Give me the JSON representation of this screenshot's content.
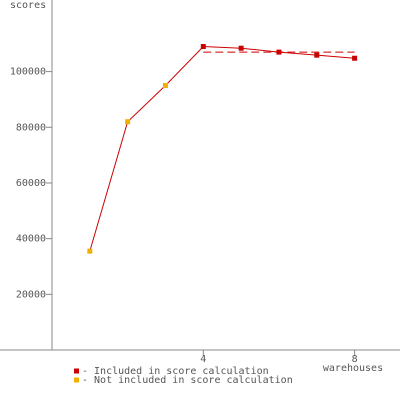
{
  "chart_data": {
    "type": "line",
    "ylabel": "scores",
    "xlabel": "warehouses",
    "x": [
      1,
      2,
      3,
      4,
      5,
      6,
      7,
      8
    ],
    "values": [
      35500,
      82000,
      95000,
      109000,
      108400,
      107000,
      105900,
      104800
    ],
    "included": [
      false,
      false,
      false,
      true,
      true,
      true,
      true,
      true
    ],
    "line_color": "#cc0000",
    "legend": [
      {
        "name": "- Included in score calculation",
        "color": "#cc0000"
      },
      {
        "name": "- Not included in score calculation",
        "color": "#f0b000"
      }
    ],
    "score": 107000,
    "xlim": [
      0,
      9.2
    ],
    "ylim": [
      0,
      125000
    ],
    "xticks": [
      4,
      8
    ],
    "yticks": [
      20000,
      40000,
      60000,
      80000,
      100000
    ]
  }
}
